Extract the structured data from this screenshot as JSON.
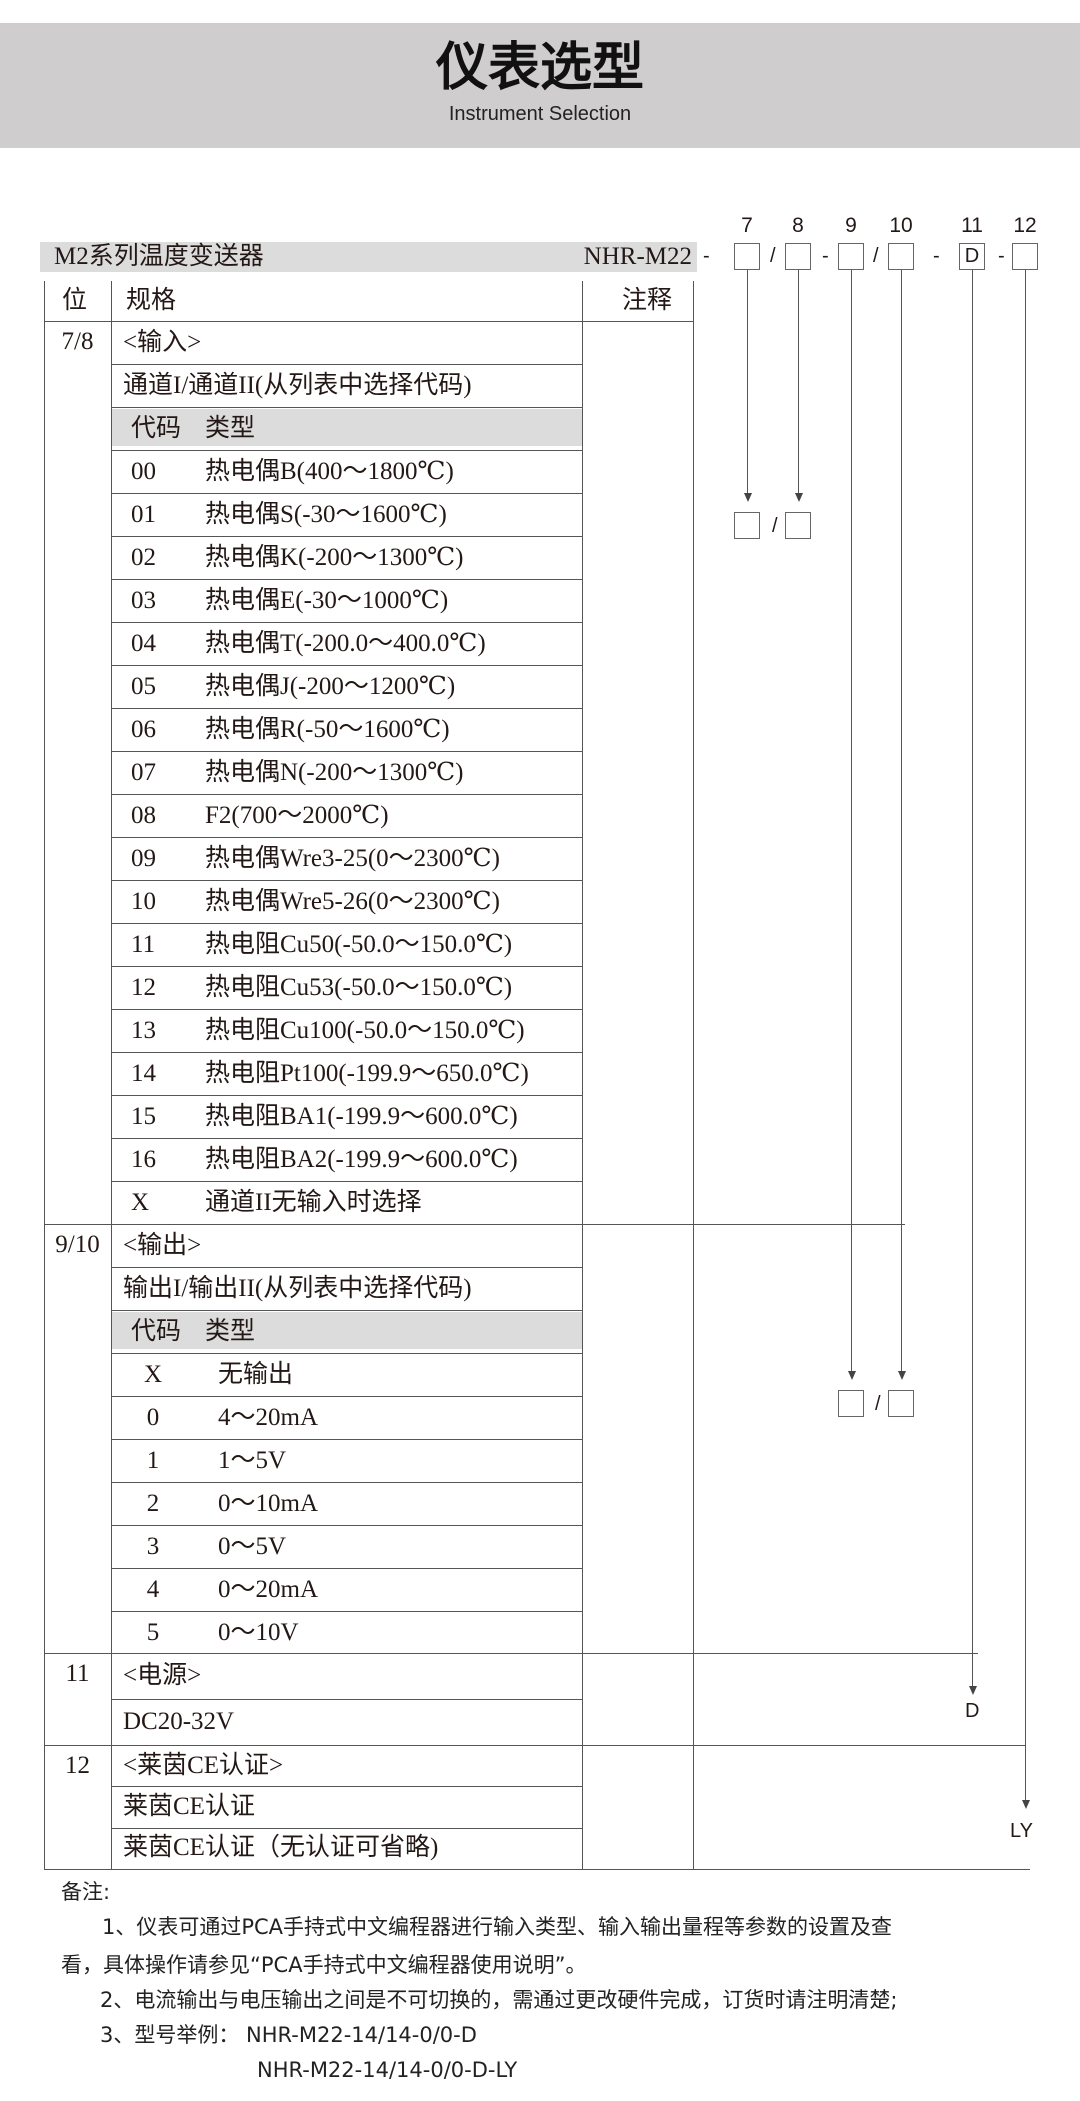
{
  "header": {
    "title": "仪表选型",
    "subtitle": "Instrument Selection"
  },
  "product": {
    "series_label": "M2系列温度变送器",
    "model": "NHR-M22"
  },
  "positions": [
    "7",
    "8",
    "9",
    "10",
    "11",
    "12"
  ],
  "code_boxes": [
    "",
    "",
    "",
    "",
    "D",
    ""
  ],
  "separators": [
    "-",
    "/",
    "-",
    "/",
    "-",
    "-"
  ],
  "table_header": {
    "position": "位",
    "spec": "规格",
    "note": "注释"
  },
  "sections": [
    {
      "position": "7/8",
      "rows": [
        {
          "text": "<输入>"
        },
        {
          "text": "通道I/通道II(从列表中选择代码)"
        },
        {
          "code": "代码",
          "type": "类型",
          "header": true
        },
        {
          "code": "00",
          "type": "热电偶B(400～1800℃)"
        },
        {
          "code": "01",
          "type": "热电偶S(-30～1600℃)"
        },
        {
          "code": "02",
          "type": "热电偶K(-200～1300℃)"
        },
        {
          "code": "03",
          "type": "热电偶E(-30～1000℃)"
        },
        {
          "code": "04",
          "type": "热电偶T(-200.0～400.0℃)"
        },
        {
          "code": "05",
          "type": "热电偶J(-200～1200℃)"
        },
        {
          "code": "06",
          "type": "热电偶R(-50～1600℃)"
        },
        {
          "code": "07",
          "type": "热电偶N(-200～1300℃)"
        },
        {
          "code": "08",
          "type": "F2(700～2000℃)"
        },
        {
          "code": "09",
          "type": "热电偶Wre3-25(0～2300℃)"
        },
        {
          "code": "10",
          "type": "热电偶Wre5-26(0～2300℃)"
        },
        {
          "code": "11",
          "type": "热电阻Cu50(-50.0～150.0℃)"
        },
        {
          "code": "12",
          "type": "热电阻Cu53(-50.0～150.0℃)"
        },
        {
          "code": "13",
          "type": "热电阻Cu100(-50.0～150.0℃)"
        },
        {
          "code": "14",
          "type": "热电阻Pt100(-199.9～650.0℃)"
        },
        {
          "code": "15",
          "type": "热电阻BA1(-199.9～600.0℃)"
        },
        {
          "code": "16",
          "type": "热电阻BA2(-199.9～600.0℃)"
        },
        {
          "code": "X",
          "type": "通道II无输入时选择"
        }
      ]
    },
    {
      "position": "9/10",
      "rows": [
        {
          "text": "<输出>"
        },
        {
          "text": "输出I/输出II(从列表中选择代码)"
        },
        {
          "code": "代码",
          "type": "类型",
          "header": true
        },
        {
          "code": "X",
          "type": "无输出"
        },
        {
          "code": "0",
          "type": "4～20mA"
        },
        {
          "code": "1",
          "type": "1～5V"
        },
        {
          "code": "2",
          "type": "0～10mA"
        },
        {
          "code": "3",
          "type": "0～5V"
        },
        {
          "code": "4",
          "type": "0～20mA"
        },
        {
          "code": "5",
          "type": "0～10V"
        }
      ]
    },
    {
      "position": "11",
      "rows": [
        {
          "text": "<电源>"
        },
        {
          "text": "DC20-32V"
        }
      ]
    },
    {
      "position": "12",
      "rows": [
        {
          "text": "<莱茵CE认证>"
        },
        {
          "text": "莱茵CE认证"
        },
        {
          "text": "莱茵CE认证（无认证可省略)"
        }
      ]
    }
  ],
  "results": {
    "input": [
      "",
      ""
    ],
    "output": [
      "",
      ""
    ],
    "power": "D",
    "cert": "LY",
    "slash": "/"
  },
  "notes": {
    "heading": "备注:",
    "lines": [
      "1、仪表可通过PCA手持式中文编程器进行输入类型、输入输出量程等参数的设置及查",
      "看，具体操作请参见“PCA手持式中文编程器使用说明”。",
      "2、电流输出与电压输出之间是不可切换的，需通过更改硬件完成，订货时请注明清楚;",
      "3、型号举例：  NHR-M22-14/14-0/0-D",
      "NHR-M22-14/14-0/0-D-LY"
    ]
  },
  "colors": {
    "band": "#cfcdcd",
    "row_header": "#dcdcdd",
    "text": "#231815"
  }
}
